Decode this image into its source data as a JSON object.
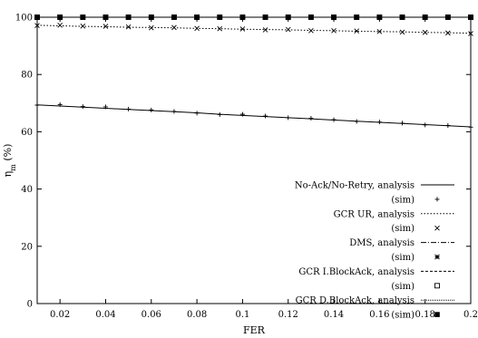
{
  "chart_data": {
    "type": "line",
    "title": "",
    "xlabel": "FER",
    "ylabel_main": "η",
    "ylabel_sub": "m",
    "ylabel_suffix": " (%)",
    "xlim": [
      0.01,
      0.2
    ],
    "ylim": [
      0,
      100
    ],
    "x_ticks": [
      0.02,
      0.04,
      0.06,
      0.08,
      0.1,
      0.12,
      0.14,
      0.16,
      0.18,
      0.2
    ],
    "x_tick_labels": [
      "0.02",
      "0.04",
      "0.06",
      "0.08",
      "0.1",
      "0.12",
      "0.14",
      "0.16",
      "0.18",
      "0.2"
    ],
    "y_ticks": [
      0,
      20,
      40,
      60,
      80,
      100
    ],
    "y_tick_labels": [
      "0",
      "20",
      "40",
      "60",
      "80",
      "100"
    ],
    "grid": false,
    "legend_position": "bottom-right",
    "x": [
      0.01,
      0.02,
      0.03,
      0.04,
      0.05,
      0.06,
      0.07,
      0.08,
      0.09,
      0.1,
      0.11,
      0.12,
      0.13,
      0.14,
      0.15,
      0.16,
      0.17,
      0.18,
      0.19,
      0.2
    ],
    "series": [
      {
        "name": "No-Ack/No-Retry, analysis",
        "sim_label": "(sim)",
        "line_style": "solid",
        "marker": "plus",
        "values": [
          69.4,
          69.0,
          68.6,
          68.2,
          67.8,
          67.4,
          67.0,
          66.6,
          66.1,
          65.7,
          65.3,
          64.9,
          64.5,
          64.1,
          63.7,
          63.3,
          62.9,
          62.5,
          62.1,
          61.7
        ],
        "sim_values": [
          69.3,
          69.5,
          68.8,
          68.7,
          67.9,
          67.6,
          67.1,
          66.5,
          66.0,
          66.1,
          65.5,
          64.9,
          64.7,
          64.2,
          63.6,
          63.4,
          63.0,
          62.4,
          62.2,
          61.6
        ]
      },
      {
        "name": "GCR UR, analysis",
        "sim_label": "(sim)",
        "line_style": "dotted",
        "marker": "cross",
        "values": [
          97.2,
          97.0,
          96.8,
          96.7,
          96.5,
          96.4,
          96.3,
          96.1,
          96.0,
          95.8,
          95.7,
          95.6,
          95.4,
          95.3,
          95.1,
          95.0,
          94.9,
          94.7,
          94.6,
          94.4
        ],
        "sim_values": [
          97.1,
          97.2,
          96.9,
          96.8,
          96.6,
          96.3,
          96.4,
          96.1,
          96.0,
          95.9,
          95.6,
          95.7,
          95.3,
          95.3,
          95.2,
          95.0,
          94.8,
          94.7,
          94.5,
          94.3
        ]
      },
      {
        "name": "DMS, analysis",
        "sim_label": "(sim)",
        "line_style": "dashdot",
        "marker": "asterisk",
        "values": [
          100,
          100,
          100,
          100,
          100,
          100,
          100,
          100,
          100,
          100,
          100,
          100,
          100,
          100,
          100,
          100,
          100,
          100,
          100,
          100
        ],
        "sim_values": [
          100,
          100,
          100,
          100,
          100,
          100,
          100,
          100,
          100,
          100,
          100,
          100,
          100,
          100,
          100,
          100,
          100,
          100,
          100,
          100
        ]
      },
      {
        "name": "GCR I.BlockAck, analysis",
        "sim_label": "(sim)",
        "line_style": "dashed",
        "marker": "square-open",
        "values": [
          100,
          100,
          100,
          100,
          100,
          100,
          100,
          100,
          100,
          100,
          100,
          100,
          100,
          100,
          100,
          100,
          100,
          100,
          100,
          100
        ],
        "sim_values": [
          100,
          100,
          100,
          100,
          100,
          100,
          100,
          100,
          100,
          100,
          100,
          100,
          100,
          100,
          100,
          100,
          100,
          100,
          100,
          100
        ]
      },
      {
        "name": "GCR D.BlockAck, analysis",
        "sim_label": "(sim)",
        "line_style": "dense-dotted",
        "marker": "square-filled",
        "values": [
          100,
          100,
          100,
          100,
          100,
          100,
          100,
          100,
          100,
          100,
          100,
          100,
          100,
          100,
          100,
          100,
          100,
          100,
          100,
          100
        ],
        "sim_values": [
          100,
          100,
          100,
          100,
          100,
          100,
          100,
          100,
          100,
          100,
          100,
          100,
          100,
          100,
          100,
          100,
          100,
          100,
          100,
          100
        ]
      }
    ]
  }
}
